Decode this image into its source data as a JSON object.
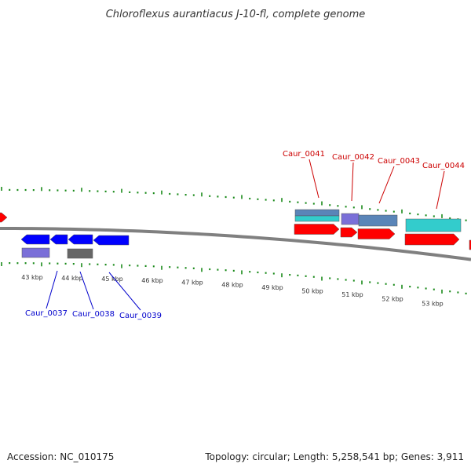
{
  "title": "Chloroflexus aurantiacus J-10-fl, complete genome",
  "footer": {
    "accession": "Accession: NC_010175",
    "summary": "Topology: circular; Length: 5,258,541 bp; Genes: 3,911"
  },
  "colors": {
    "backbone": "#808080",
    "ticks": "#1a8a1a",
    "forward_gene": "#ff0000",
    "reverse_gene": "#0000ff",
    "forward_label": "#cc0000",
    "reverse_label": "#0000cc",
    "feature_purple": "#7a6fd8",
    "feature_steel": "#5a85b8",
    "feature_cyan": "#33cccc",
    "feature_gray": "#666666"
  },
  "scale_labels": [
    "43 kbp",
    "44 kbp",
    "45 kbp",
    "46 kbp",
    "47 kbp",
    "48 kbp",
    "49 kbp",
    "50 kbp",
    "51 kbp",
    "52 kbp",
    "53 kbp"
  ],
  "forward_genes": [
    "Caur_0041",
    "Caur_0042",
    "Caur_0043",
    "Caur_0044"
  ],
  "reverse_genes": [
    "Caur_0037",
    "Caur_0038",
    "Caur_0039"
  ]
}
